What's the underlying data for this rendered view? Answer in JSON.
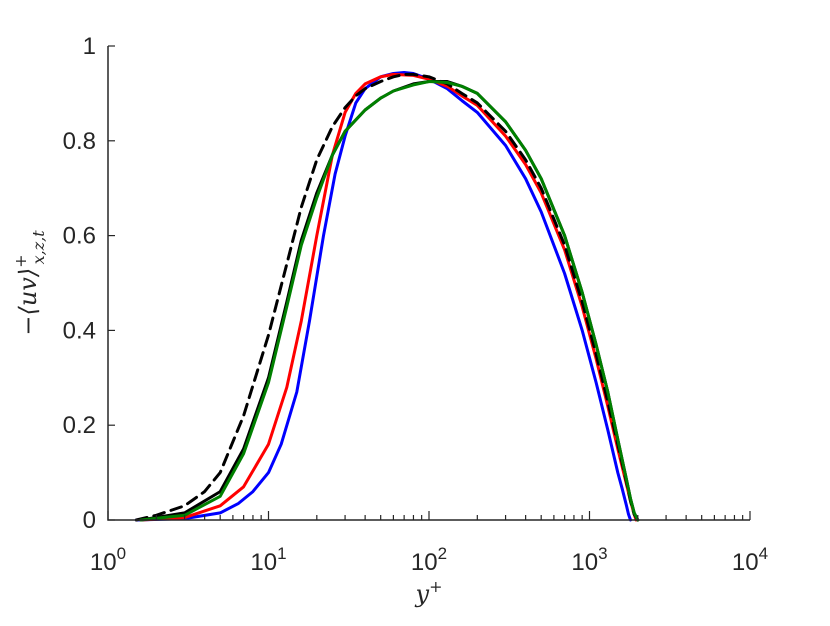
{
  "chart_data": {
    "type": "line",
    "title": "",
    "xlabel": "y",
    "xlabel_sup": "+",
    "ylabel": "−⟨uv⟩",
    "ylabel_sup": "+",
    "ylabel_sub": "x,z,t",
    "xscale": "log",
    "xlim": [
      1,
      10000
    ],
    "ylim": [
      0,
      1
    ],
    "grid": false,
    "x_tick_labels": [
      {
        "base": "10",
        "exp": "0",
        "value": 1
      },
      {
        "base": "10",
        "exp": "1",
        "value": 10
      },
      {
        "base": "10",
        "exp": "2",
        "value": 100
      },
      {
        "base": "10",
        "exp": "3",
        "value": 1000
      },
      {
        "base": "10",
        "exp": "4",
        "value": 10000
      }
    ],
    "y_tick_labels": [
      {
        "label": "0",
        "value": 0
      },
      {
        "label": "0.2",
        "value": 0.2
      },
      {
        "label": "0.4",
        "value": 0.4
      },
      {
        "label": "0.6",
        "value": 0.6
      },
      {
        "label": "0.8",
        "value": 0.8
      },
      {
        "label": "1",
        "value": 1
      }
    ],
    "series": [
      {
        "color": "#0000ff",
        "dash": "solid",
        "x": [
          1.5,
          3,
          5,
          6.5,
          8,
          10,
          12,
          15,
          18,
          22,
          26,
          30,
          35,
          40,
          50,
          60,
          70,
          80,
          100,
          130,
          160,
          200,
          300,
          400,
          500,
          700,
          900,
          1100,
          1300,
          1500,
          1600,
          1700,
          1750,
          1800
        ],
        "y": [
          0,
          0.003,
          0.015,
          0.035,
          0.06,
          0.1,
          0.16,
          0.27,
          0.42,
          0.6,
          0.73,
          0.81,
          0.88,
          0.91,
          0.935,
          0.942,
          0.944,
          0.942,
          0.93,
          0.91,
          0.885,
          0.86,
          0.79,
          0.72,
          0.65,
          0.52,
          0.4,
          0.29,
          0.19,
          0.1,
          0.065,
          0.03,
          0.012,
          0
        ]
      },
      {
        "color": "#ff0000",
        "dash": "solid",
        "x": [
          1.6,
          3,
          5,
          7,
          10,
          13,
          16,
          20,
          25,
          30,
          35,
          40,
          50,
          60,
          80,
          100,
          130,
          160,
          200,
          300,
          400,
          500,
          700,
          900,
          1100,
          1300,
          1500,
          1700,
          1800,
          1900,
          1950
        ],
        "y": [
          0,
          0.005,
          0.03,
          0.07,
          0.16,
          0.28,
          0.42,
          0.6,
          0.77,
          0.86,
          0.9,
          0.92,
          0.935,
          0.94,
          0.938,
          0.93,
          0.915,
          0.895,
          0.875,
          0.81,
          0.75,
          0.69,
          0.57,
          0.45,
          0.34,
          0.24,
          0.15,
          0.075,
          0.04,
          0.012,
          0
        ]
      },
      {
        "color": "#000000",
        "dash": "solid",
        "x": [
          1.6,
          3,
          5,
          7,
          10,
          13,
          16,
          20,
          25,
          30,
          40,
          50,
          60,
          80,
          100,
          130,
          160,
          200,
          300,
          400,
          500,
          700,
          900,
          1100,
          1300,
          1500,
          1700,
          1800,
          1900,
          2000
        ],
        "y": [
          0,
          0.015,
          0.06,
          0.15,
          0.3,
          0.46,
          0.59,
          0.69,
          0.77,
          0.82,
          0.865,
          0.89,
          0.905,
          0.92,
          0.925,
          0.925,
          0.915,
          0.9,
          0.84,
          0.78,
          0.72,
          0.6,
          0.48,
          0.37,
          0.27,
          0.17,
          0.085,
          0.045,
          0.015,
          0
        ]
      },
      {
        "color": "#000000",
        "dash": "dashed",
        "x": [
          1.5,
          2,
          3,
          4,
          5,
          7,
          10,
          13,
          16,
          20,
          25,
          30,
          35,
          40,
          50,
          60,
          70,
          80,
          100,
          130,
          160,
          200,
          300,
          400,
          500,
          700,
          900,
          1100,
          1300,
          1500,
          1700,
          1800,
          1900,
          2000
        ],
        "y": [
          0,
          0.01,
          0.03,
          0.06,
          0.1,
          0.22,
          0.39,
          0.54,
          0.66,
          0.76,
          0.83,
          0.87,
          0.895,
          0.91,
          0.925,
          0.935,
          0.94,
          0.94,
          0.935,
          0.92,
          0.9,
          0.88,
          0.82,
          0.76,
          0.7,
          0.58,
          0.46,
          0.35,
          0.25,
          0.16,
          0.08,
          0.04,
          0.012,
          0
        ]
      },
      {
        "color": "#008000",
        "dash": "solid",
        "x": [
          1.6,
          3,
          5,
          7,
          10,
          13,
          16,
          20,
          25,
          30,
          40,
          50,
          60,
          80,
          100,
          130,
          160,
          200,
          300,
          400,
          500,
          700,
          900,
          1100,
          1300,
          1500,
          1700,
          1800,
          1900,
          2000
        ],
        "y": [
          0,
          0.01,
          0.05,
          0.14,
          0.29,
          0.45,
          0.58,
          0.68,
          0.77,
          0.82,
          0.865,
          0.89,
          0.905,
          0.918,
          0.925,
          0.923,
          0.915,
          0.9,
          0.84,
          0.78,
          0.72,
          0.6,
          0.48,
          0.37,
          0.27,
          0.17,
          0.085,
          0.045,
          0.015,
          0
        ]
      }
    ]
  }
}
